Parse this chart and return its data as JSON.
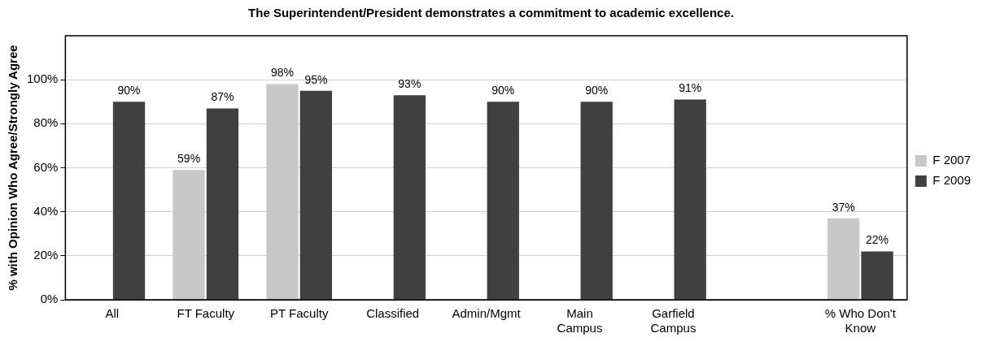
{
  "chart_data": {
    "type": "bar",
    "title": "The Superintendent/President demonstrates a commitment to academic excellence.",
    "ylabel": "% with Opinion Who Agree/Strongly Agree",
    "categories": [
      "All",
      "FT Faculty",
      "PT Faculty",
      "Classified",
      "Admin/Mgmt",
      "Main Campus",
      "Garfield Campus",
      null,
      "% Who Don't Know"
    ],
    "series": [
      {
        "name": "F 2007",
        "color": "#c8c8c8",
        "values": [
          null,
          59,
          98,
          null,
          null,
          null,
          null,
          null,
          37
        ],
        "value_labels": [
          null,
          "59%",
          "98%",
          null,
          null,
          null,
          null,
          null,
          "37%"
        ]
      },
      {
        "name": "F 2009",
        "color": "#404040",
        "values": [
          90,
          87,
          95,
          93,
          90,
          90,
          91,
          null,
          22
        ],
        "value_labels": [
          "90%",
          "87%",
          "95%",
          "93%",
          "90%",
          "90%",
          "91%",
          null,
          "22%"
        ]
      }
    ],
    "ylim": [
      0,
      120
    ],
    "yticks": [
      {
        "value": 0,
        "label": "0%"
      },
      {
        "value": 20,
        "label": "20%"
      },
      {
        "value": 40,
        "label": "40%"
      },
      {
        "value": 60,
        "label": "60%"
      },
      {
        "value": 80,
        "label": "80%"
      },
      {
        "value": 100,
        "label": "100%"
      }
    ],
    "grid": "y",
    "legend": "right"
  }
}
